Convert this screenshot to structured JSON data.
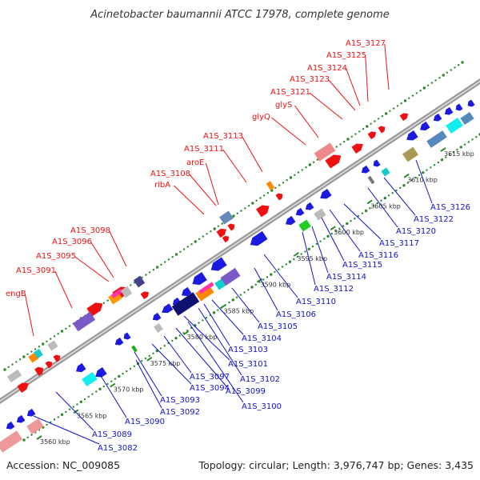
{
  "title": "Acinetobacter baumannii ATCC 17978, complete genome",
  "footer": {
    "accession": "Accession: NC_009085",
    "summary": "Topology: circular; Length: 3,976,747 bp; Genes: 3,435"
  },
  "colors": {
    "forward_label": "#ee1111",
    "reverse_label": "#1111cc",
    "backbone": "#9a9a9a",
    "tick": "#2a8a2a"
  },
  "ticks": [
    {
      "label": "3560 kbp",
      "pos": 3560
    },
    {
      "label": "3565 kbp",
      "pos": 3565
    },
    {
      "label": "3570 kbp",
      "pos": 3570
    },
    {
      "label": "3575 kbp",
      "pos": 3575
    },
    {
      "label": "3580 kbp",
      "pos": 3580
    },
    {
      "label": "3585 kbp",
      "pos": 3585
    },
    {
      "label": "3590 kbp",
      "pos": 3590
    },
    {
      "label": "3595 kbp",
      "pos": 3595
    },
    {
      "label": "3600 kbp",
      "pos": 3600
    },
    {
      "label": "3605 kbp",
      "pos": 3605
    },
    {
      "label": "3610 kbp",
      "pos": 3610
    },
    {
      "label": "3615 kbp",
      "pos": 3615
    }
  ],
  "forward_genes": [
    "engB",
    "A1S_3091",
    "A1S_3095",
    "A1S_3096",
    "A1S_3098",
    "ribA",
    "A1S_3108",
    "aroE",
    "A1S_3111",
    "A1S_3113",
    "glyQ",
    "glyS",
    "A1S_3121",
    "A1S_3123",
    "A1S_3124",
    "A1S_3125",
    "A1S_3127"
  ],
  "reverse_genes": [
    "A1S_3082",
    "A1S_3089",
    "A1S_3090",
    "A1S_3092",
    "A1S_3093",
    "A1S_3094",
    "A1S_3097",
    "A1S_3099",
    "A1S_3100",
    "A1S_3101",
    "A1S_3102",
    "A1S_3103",
    "A1S_3104",
    "A1S_3105",
    "A1S_3106",
    "A1S_3110",
    "A1S_3112",
    "A1S_3114",
    "A1S_3115",
    "A1S_3116",
    "A1S_3117",
    "A1S_3120",
    "A1S_3122",
    "A1S_3126"
  ]
}
